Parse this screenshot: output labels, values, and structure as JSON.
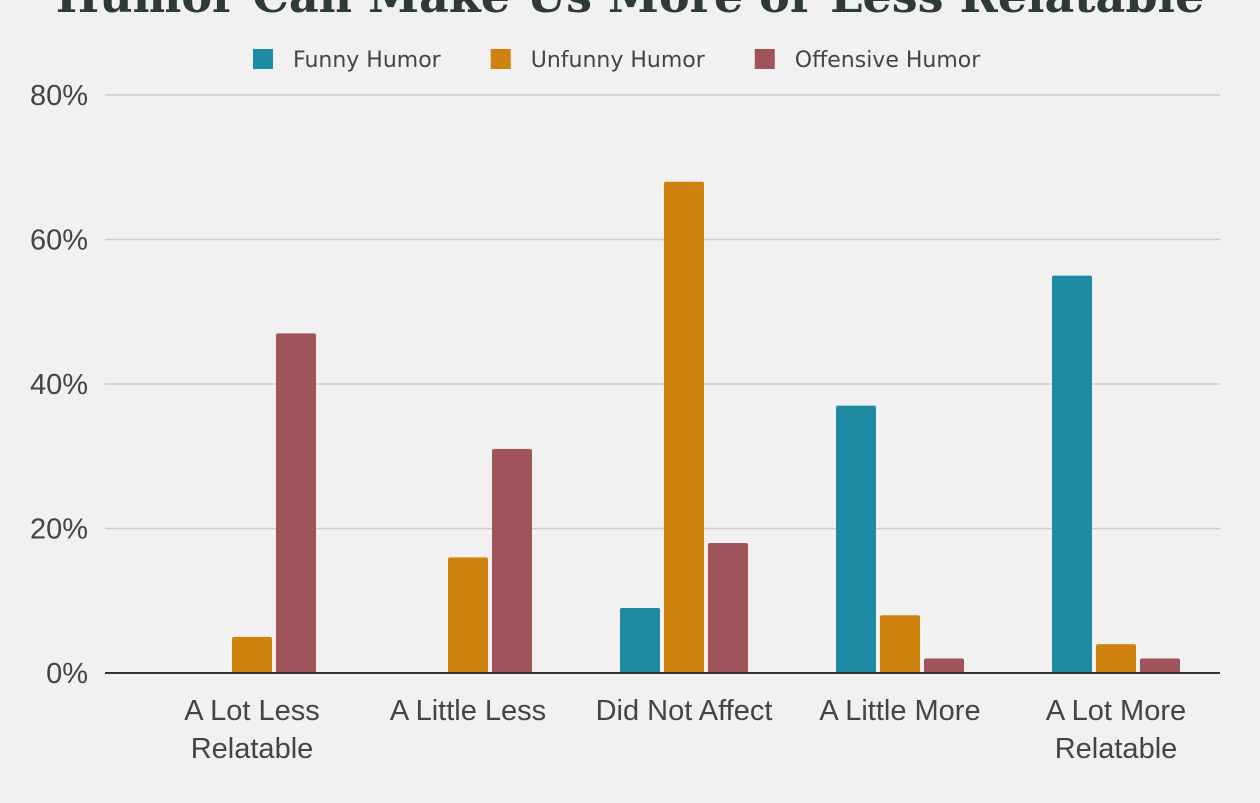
{
  "chart_data": {
    "type": "bar",
    "title": "Humor Can Make Us More or Less Relatable",
    "xlabel": "",
    "ylabel": "",
    "categories": [
      [
        "A Lot Less",
        "Relatable"
      ],
      [
        "A Little Less"
      ],
      [
        "Did Not Affect"
      ],
      [
        "A Little More"
      ],
      [
        "A Lot More",
        "Relatable"
      ]
    ],
    "series": [
      {
        "name": "Funny Humor",
        "color": "#1f8ba3",
        "values": [
          0,
          0,
          9,
          37,
          55
        ]
      },
      {
        "name": "Unfunny Humor",
        "color": "#cf830e",
        "values": [
          5,
          16,
          68,
          8,
          4
        ]
      },
      {
        "name": "Offensive Humor",
        "color": "#a0535a",
        "values": [
          47,
          31,
          18,
          2,
          2
        ]
      }
    ],
    "yticks": [
      "0%",
      "20%",
      "40%",
      "60%",
      "80%"
    ],
    "ylim": [
      0,
      80
    ],
    "grid": true,
    "legend_position": "top"
  }
}
